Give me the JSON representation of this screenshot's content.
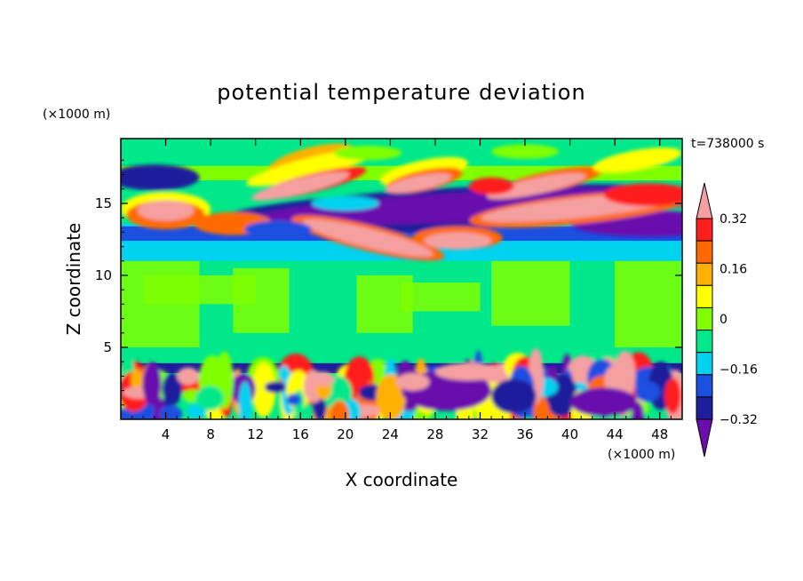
{
  "chart_data": {
    "type": "heatmap",
    "title": "potential temperature deviation",
    "xlabel": "X coordinate",
    "ylabel": "Z coordinate",
    "x_unit": "(×1000 m)",
    "y_unit": "(×1000 m)",
    "time_label": "t=738000 s",
    "xlim": [
      0,
      50
    ],
    "ylim": [
      0,
      19.5
    ],
    "x_ticks": [
      4,
      8,
      12,
      16,
      20,
      24,
      28,
      32,
      36,
      40,
      44,
      48
    ],
    "x_tick_labels": [
      "4",
      "8",
      "12",
      "16",
      "20",
      "24",
      "28",
      "32",
      "36",
      "40",
      "44",
      "48"
    ],
    "y_ticks": [
      5,
      10,
      15
    ],
    "y_tick_labels": [
      "5",
      "10",
      "15"
    ],
    "colorbar": {
      "levels": [
        -0.4,
        -0.32,
        -0.24,
        -0.16,
        -0.08,
        0,
        0.08,
        0.16,
        0.24,
        0.32,
        0.4
      ],
      "tick_labels": [
        "0.32",
        "0.16",
        "0",
        "−0.16",
        "−0.32"
      ],
      "tick_values": [
        0.32,
        0.16,
        0,
        -0.16,
        -0.32
      ],
      "colors": [
        "#6A0DAD",
        "#1E1E9C",
        "#1A4FE0",
        "#00D2F0",
        "#00E88A",
        "#80FF00",
        "#FFFF00",
        "#FFB000",
        "#FF6A00",
        "#FF1E1E",
        "#F5A0A0"
      ]
    },
    "features": [
      {
        "name": "upper-negative-band",
        "x_range": [
          14,
          50
        ],
        "z_range": [
          13.5,
          16.5
        ],
        "value": -0.4
      },
      {
        "name": "upper-positive-streak-1",
        "x_range": [
          15,
          31
        ],
        "z_range": [
          11,
          14
        ],
        "value": 0.4
      },
      {
        "name": "upper-positive-streak-2",
        "x_range": [
          28,
          50
        ],
        "z_range": [
          11.5,
          16
        ],
        "value": 0.4
      },
      {
        "name": "upper-positive-streak-3",
        "x_range": [
          8,
          20
        ],
        "z_range": [
          15.5,
          17
        ],
        "value": 0.4
      },
      {
        "name": "upper-positive-left",
        "x_range": [
          0,
          7
        ],
        "z_range": [
          13,
          16
        ],
        "value": 0.4
      },
      {
        "name": "mid-neutral-layer",
        "x_range": [
          0,
          50
        ],
        "z_range": [
          4,
          11
        ],
        "value": 0.0
      },
      {
        "name": "lower-negative-line",
        "x_range": [
          0,
          50
        ],
        "z_range": [
          3.2,
          3.8
        ],
        "value": -0.32
      },
      {
        "name": "lower-mixed-layer",
        "x_range": [
          0,
          50
        ],
        "z_range": [
          0,
          3.3
        ],
        "value": 0.0
      }
    ]
  }
}
